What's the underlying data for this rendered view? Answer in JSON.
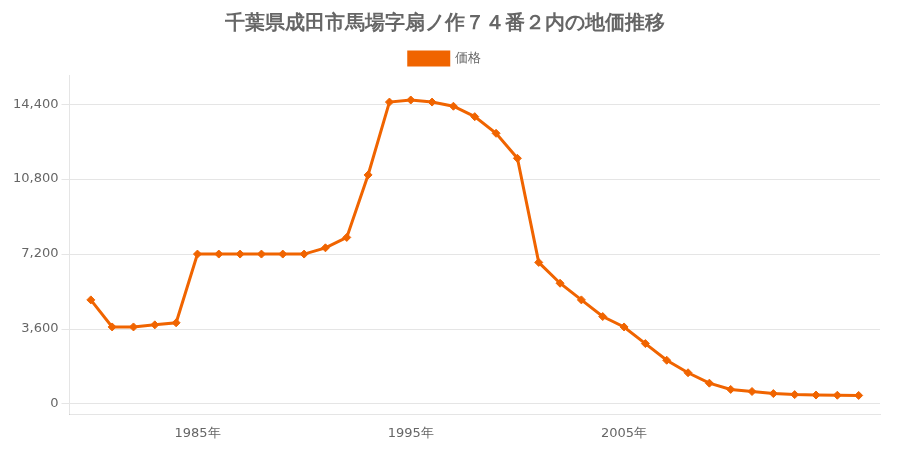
{
  "chart_data": {
    "type": "line",
    "title": "千葉県成田市馬場字扇ノ作７４番２内の地価推移",
    "x": [
      1980,
      1981,
      1982,
      1983,
      1984,
      1985,
      1986,
      1987,
      1988,
      1989,
      1990,
      1991,
      1992,
      1993,
      1994,
      1995,
      1996,
      1997,
      1998,
      1999,
      2000,
      2001,
      2002,
      2003,
      2004,
      2005,
      2006,
      2007,
      2008,
      2009,
      2010,
      2011,
      2012,
      2013,
      2014,
      2015,
      2016
    ],
    "series": [
      {
        "name": "価格",
        "color": "#f06400",
        "marker": "diamond",
        "values": [
          5000,
          3700,
          3700,
          3800,
          3900,
          7200,
          7200,
          7200,
          7200,
          7200,
          7200,
          7500,
          8000,
          11000,
          14500,
          14600,
          14500,
          14300,
          13800,
          13000,
          11800,
          6800,
          5800,
          5000,
          4200,
          3700,
          2900,
          2100,
          1500,
          1000,
          700,
          600,
          500,
          450,
          430,
          420,
          410
        ]
      }
    ],
    "xlim": [
      1979,
      2017
    ],
    "xticks": [
      {
        "value": 1985,
        "label": "1985年"
      },
      {
        "value": 1995,
        "label": "1995年"
      },
      {
        "value": 2005,
        "label": "2005年"
      }
    ],
    "ylim": [
      -500,
      15800
    ],
    "yticks": [
      0,
      {
        "value": 3600,
        "label": "3,600"
      },
      {
        "value": 7200,
        "label": "7,200"
      },
      {
        "value": 10800,
        "label": "10,800"
      },
      {
        "value": 14400,
        "label": "14,400"
      }
    ],
    "grid": "y",
    "legend": "top"
  }
}
